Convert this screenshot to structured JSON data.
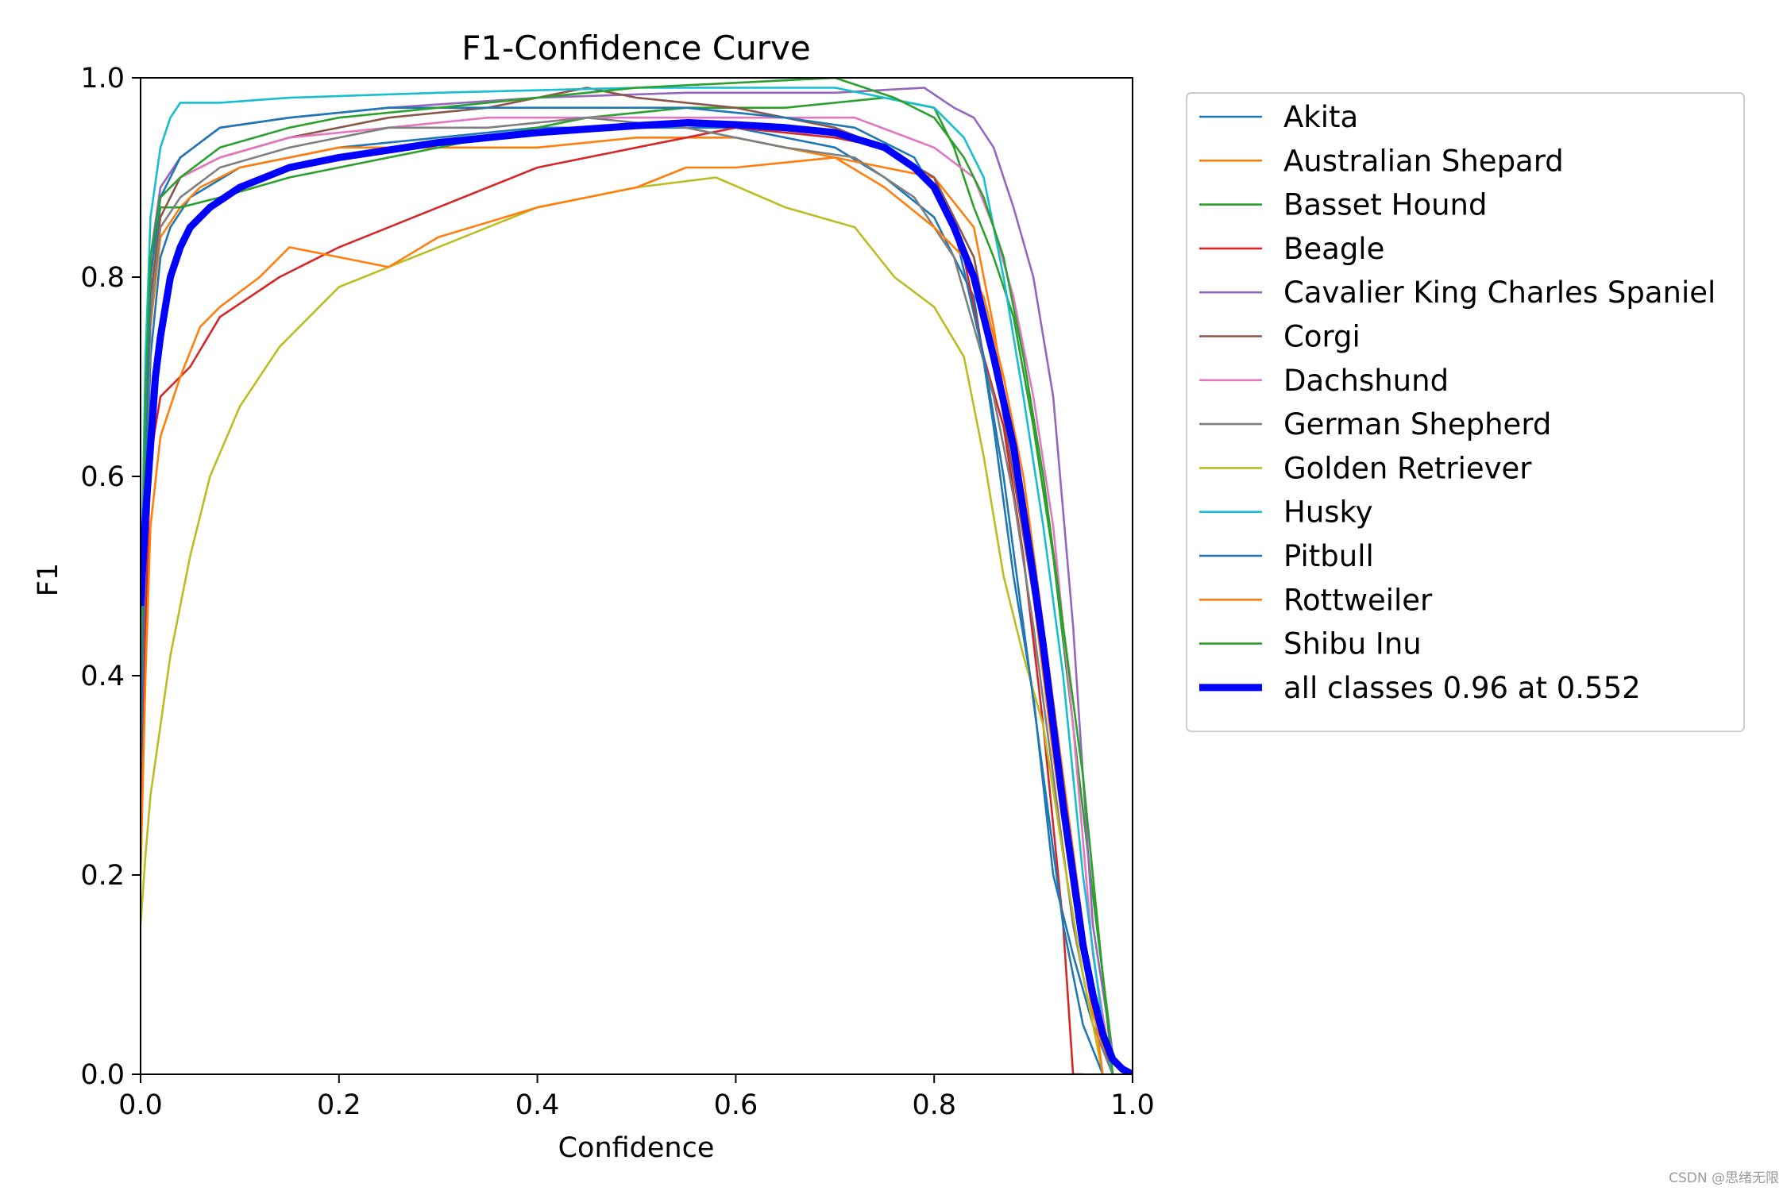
{
  "chart_data": {
    "type": "line",
    "title": "F1-Confidence Curve",
    "xlabel": "Confidence",
    "ylabel": "F1",
    "xlim": [
      0,
      1
    ],
    "ylim": [
      0,
      1
    ],
    "xticks": [
      "0.0",
      "0.2",
      "0.4",
      "0.6",
      "0.8",
      "1.0"
    ],
    "yticks": [
      "0.0",
      "0.2",
      "0.4",
      "0.6",
      "0.8",
      "1.0"
    ],
    "grid": false,
    "legend_position": "outside-right",
    "series": [
      {
        "name": "Akita",
        "color": "#1f77b4",
        "x": [
          0,
          0.005,
          0.01,
          0.02,
          0.03,
          0.05,
          0.1,
          0.2,
          0.3,
          0.4,
          0.5,
          0.6,
          0.7,
          0.75,
          0.8,
          0.84,
          0.86,
          0.88,
          0.9,
          0.92,
          0.94,
          0.96,
          0.98
        ],
        "y": [
          0.25,
          0.55,
          0.72,
          0.82,
          0.85,
          0.88,
          0.91,
          0.93,
          0.94,
          0.95,
          0.95,
          0.95,
          0.93,
          0.9,
          0.86,
          0.78,
          0.65,
          0.5,
          0.38,
          0.2,
          0.12,
          0.05,
          0
        ]
      },
      {
        "name": "Australian Shepard",
        "color": "#ff7f0e",
        "x": [
          0,
          0.005,
          0.01,
          0.02,
          0.04,
          0.06,
          0.1,
          0.2,
          0.3,
          0.4,
          0.5,
          0.6,
          0.7,
          0.75,
          0.8,
          0.84,
          0.86,
          0.88,
          0.9,
          0.92,
          0.94,
          0.96,
          0.98
        ],
        "y": [
          0.3,
          0.58,
          0.75,
          0.84,
          0.87,
          0.89,
          0.91,
          0.93,
          0.93,
          0.93,
          0.94,
          0.94,
          0.92,
          0.91,
          0.9,
          0.85,
          0.75,
          0.62,
          0.48,
          0.32,
          0.18,
          0.06,
          0
        ]
      },
      {
        "name": "Basset Hound",
        "color": "#2ca02c",
        "x": [
          0,
          0.005,
          0.01,
          0.02,
          0.04,
          0.08,
          0.15,
          0.25,
          0.35,
          0.45,
          0.55,
          0.65,
          0.75,
          0.8,
          0.82,
          0.84,
          0.86,
          0.88,
          0.9,
          0.92,
          0.94,
          0.96,
          0.98
        ],
        "y": [
          0.4,
          0.65,
          0.8,
          0.87,
          0.87,
          0.88,
          0.9,
          0.92,
          0.94,
          0.96,
          0.97,
          0.97,
          0.98,
          0.97,
          0.93,
          0.87,
          0.82,
          0.76,
          0.65,
          0.52,
          0.35,
          0.18,
          0.02
        ]
      },
      {
        "name": "Beagle",
        "color": "#d62728",
        "x": [
          0,
          0.005,
          0.01,
          0.02,
          0.05,
          0.08,
          0.14,
          0.2,
          0.3,
          0.4,
          0.5,
          0.55,
          0.6,
          0.7,
          0.75,
          0.8,
          0.83,
          0.85,
          0.87,
          0.89,
          0.91,
          0.93,
          0.94,
          0.95
        ],
        "y": [
          0.2,
          0.45,
          0.62,
          0.68,
          0.71,
          0.76,
          0.8,
          0.83,
          0.87,
          0.91,
          0.93,
          0.94,
          0.95,
          0.94,
          0.93,
          0.9,
          0.82,
          0.72,
          0.65,
          0.52,
          0.35,
          0.15,
          0.0,
          0.0
        ]
      },
      {
        "name": "Cavalier King Charles Spaniel",
        "color": "#9467bd",
        "x": [
          0,
          0.005,
          0.01,
          0.02,
          0.04,
          0.08,
          0.15,
          0.25,
          0.4,
          0.55,
          0.7,
          0.79,
          0.82,
          0.84,
          0.86,
          0.88,
          0.9,
          0.92,
          0.94,
          0.96,
          0.98
        ],
        "y": [
          0.35,
          0.65,
          0.82,
          0.89,
          0.92,
          0.95,
          0.96,
          0.97,
          0.98,
          0.985,
          0.985,
          0.99,
          0.97,
          0.96,
          0.93,
          0.87,
          0.8,
          0.68,
          0.45,
          0.15,
          0.02
        ]
      },
      {
        "name": "Corgi",
        "color": "#8c564b",
        "x": [
          0,
          0.005,
          0.01,
          0.02,
          0.04,
          0.08,
          0.15,
          0.25,
          0.35,
          0.45,
          0.5,
          0.6,
          0.7,
          0.75,
          0.8,
          0.84,
          0.86,
          0.88,
          0.9,
          0.92,
          0.94,
          0.96,
          0.98
        ],
        "y": [
          0.3,
          0.6,
          0.78,
          0.86,
          0.9,
          0.92,
          0.94,
          0.96,
          0.97,
          0.99,
          0.98,
          0.97,
          0.95,
          0.93,
          0.9,
          0.82,
          0.72,
          0.6,
          0.48,
          0.35,
          0.2,
          0.07,
          0
        ]
      },
      {
        "name": "Dachshund",
        "color": "#e377c2",
        "x": [
          0,
          0.005,
          0.01,
          0.02,
          0.04,
          0.08,
          0.15,
          0.25,
          0.35,
          0.45,
          0.55,
          0.65,
          0.72,
          0.8,
          0.84,
          0.86,
          0.88,
          0.9,
          0.92,
          0.94,
          0.96,
          0.98
        ],
        "y": [
          0.35,
          0.62,
          0.8,
          0.88,
          0.9,
          0.92,
          0.94,
          0.95,
          0.96,
          0.96,
          0.96,
          0.96,
          0.96,
          0.93,
          0.9,
          0.85,
          0.78,
          0.68,
          0.55,
          0.35,
          0.12,
          0
        ]
      },
      {
        "name": "German Shepherd",
        "color": "#7f7f7f",
        "x": [
          0,
          0.005,
          0.01,
          0.02,
          0.04,
          0.08,
          0.15,
          0.25,
          0.35,
          0.45,
          0.55,
          0.65,
          0.72,
          0.78,
          0.82,
          0.84,
          0.86,
          0.88,
          0.9,
          0.92,
          0.94,
          0.96,
          0.98
        ],
        "y": [
          0.3,
          0.58,
          0.76,
          0.85,
          0.88,
          0.91,
          0.93,
          0.95,
          0.95,
          0.96,
          0.95,
          0.93,
          0.92,
          0.88,
          0.82,
          0.75,
          0.68,
          0.58,
          0.45,
          0.3,
          0.15,
          0.05,
          0
        ]
      },
      {
        "name": "Golden Retriever",
        "color": "#bcbd22",
        "x": [
          0,
          0.005,
          0.01,
          0.02,
          0.03,
          0.05,
          0.07,
          0.1,
          0.14,
          0.2,
          0.3,
          0.4,
          0.5,
          0.58,
          0.65,
          0.72,
          0.76,
          0.8,
          0.83,
          0.85,
          0.87,
          0.89,
          0.91,
          0.93,
          0.95,
          0.97
        ],
        "y": [
          0.15,
          0.22,
          0.28,
          0.35,
          0.42,
          0.52,
          0.6,
          0.67,
          0.73,
          0.79,
          0.83,
          0.87,
          0.89,
          0.9,
          0.87,
          0.85,
          0.8,
          0.77,
          0.72,
          0.62,
          0.5,
          0.42,
          0.35,
          0.22,
          0.1,
          0
        ]
      },
      {
        "name": "Husky",
        "color": "#17becf",
        "x": [
          0,
          0.005,
          0.01,
          0.02,
          0.03,
          0.04,
          0.08,
          0.15,
          0.3,
          0.5,
          0.7,
          0.8,
          0.83,
          0.85,
          0.87,
          0.89,
          0.91,
          0.93,
          0.95,
          0.97,
          0.98
        ],
        "y": [
          0.45,
          0.72,
          0.86,
          0.93,
          0.96,
          0.975,
          0.975,
          0.98,
          0.985,
          0.99,
          0.99,
          0.97,
          0.94,
          0.9,
          0.8,
          0.68,
          0.55,
          0.4,
          0.2,
          0.05,
          0
        ]
      },
      {
        "name": "Pitbull",
        "color": "#1f77b4",
        "x": [
          0,
          0.005,
          0.01,
          0.02,
          0.04,
          0.08,
          0.15,
          0.25,
          0.35,
          0.45,
          0.55,
          0.65,
          0.72,
          0.78,
          0.82,
          0.85,
          0.87,
          0.89,
          0.91,
          0.93,
          0.95,
          0.97
        ],
        "y": [
          0.3,
          0.6,
          0.8,
          0.88,
          0.92,
          0.95,
          0.96,
          0.97,
          0.97,
          0.97,
          0.97,
          0.96,
          0.95,
          0.92,
          0.85,
          0.72,
          0.6,
          0.45,
          0.3,
          0.15,
          0.05,
          0
        ]
      },
      {
        "name": "Rottweiler",
        "color": "#ff7f0e",
        "x": [
          0,
          0.005,
          0.01,
          0.02,
          0.04,
          0.06,
          0.08,
          0.12,
          0.15,
          0.2,
          0.25,
          0.3,
          0.4,
          0.5,
          0.55,
          0.6,
          0.7,
          0.75,
          0.8,
          0.83,
          0.85,
          0.87,
          0.89,
          0.91,
          0.93,
          0.95,
          0.97
        ],
        "y": [
          0.2,
          0.4,
          0.55,
          0.64,
          0.7,
          0.75,
          0.77,
          0.8,
          0.83,
          0.82,
          0.81,
          0.84,
          0.87,
          0.89,
          0.91,
          0.91,
          0.92,
          0.89,
          0.85,
          0.82,
          0.78,
          0.7,
          0.6,
          0.45,
          0.3,
          0.15,
          0
        ]
      },
      {
        "name": "Shibu Inu",
        "color": "#2ca02c",
        "x": [
          0,
          0.005,
          0.01,
          0.02,
          0.04,
          0.08,
          0.15,
          0.2,
          0.3,
          0.4,
          0.5,
          0.6,
          0.7,
          0.73,
          0.76,
          0.8,
          0.83,
          0.85,
          0.87,
          0.89,
          0.91,
          0.93,
          0.95,
          0.97,
          0.98
        ],
        "y": [
          0.4,
          0.68,
          0.82,
          0.88,
          0.9,
          0.93,
          0.95,
          0.96,
          0.97,
          0.98,
          0.99,
          0.995,
          1.0,
          0.99,
          0.98,
          0.96,
          0.92,
          0.88,
          0.82,
          0.72,
          0.6,
          0.45,
          0.3,
          0.1,
          0
        ]
      },
      {
        "name": "all classes 0.96 at 0.552",
        "color": "#0000ff",
        "bold": true,
        "x": [
          0,
          0.005,
          0.01,
          0.015,
          0.02,
          0.025,
          0.03,
          0.04,
          0.05,
          0.07,
          0.1,
          0.15,
          0.2,
          0.3,
          0.4,
          0.5,
          0.552,
          0.6,
          0.65,
          0.7,
          0.75,
          0.78,
          0.8,
          0.82,
          0.84,
          0.86,
          0.88,
          0.9,
          0.91,
          0.92,
          0.93,
          0.94,
          0.95,
          0.96,
          0.97,
          0.98,
          0.99,
          1.0
        ],
        "y": [
          0.47,
          0.56,
          0.63,
          0.7,
          0.74,
          0.77,
          0.8,
          0.83,
          0.85,
          0.87,
          0.89,
          0.91,
          0.92,
          0.935,
          0.945,
          0.952,
          0.955,
          0.953,
          0.95,
          0.945,
          0.93,
          0.91,
          0.89,
          0.85,
          0.8,
          0.72,
          0.63,
          0.5,
          0.43,
          0.35,
          0.27,
          0.2,
          0.13,
          0.08,
          0.04,
          0.015,
          0.005,
          0
        ]
      }
    ]
  },
  "watermark": "CSDN @思绪无限"
}
